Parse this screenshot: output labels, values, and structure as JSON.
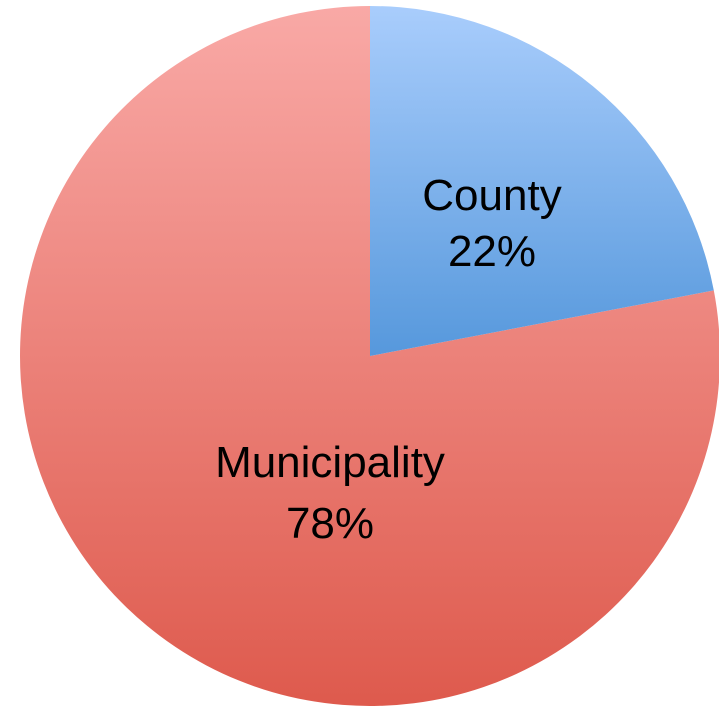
{
  "chart_data": {
    "type": "pie",
    "title": "",
    "slices": [
      {
        "label": "County",
        "percent_label": "22%",
        "value": 22,
        "color_top": "#a9cdfc",
        "color_bottom": "#5698dc"
      },
      {
        "label": "Municipality",
        "percent_label": "78%",
        "value": 78,
        "color_top": "#f9a9a6",
        "color_bottom": "#de5a4d"
      }
    ],
    "start_angle_deg": 0,
    "direction": "clockwise",
    "legend": "none"
  }
}
